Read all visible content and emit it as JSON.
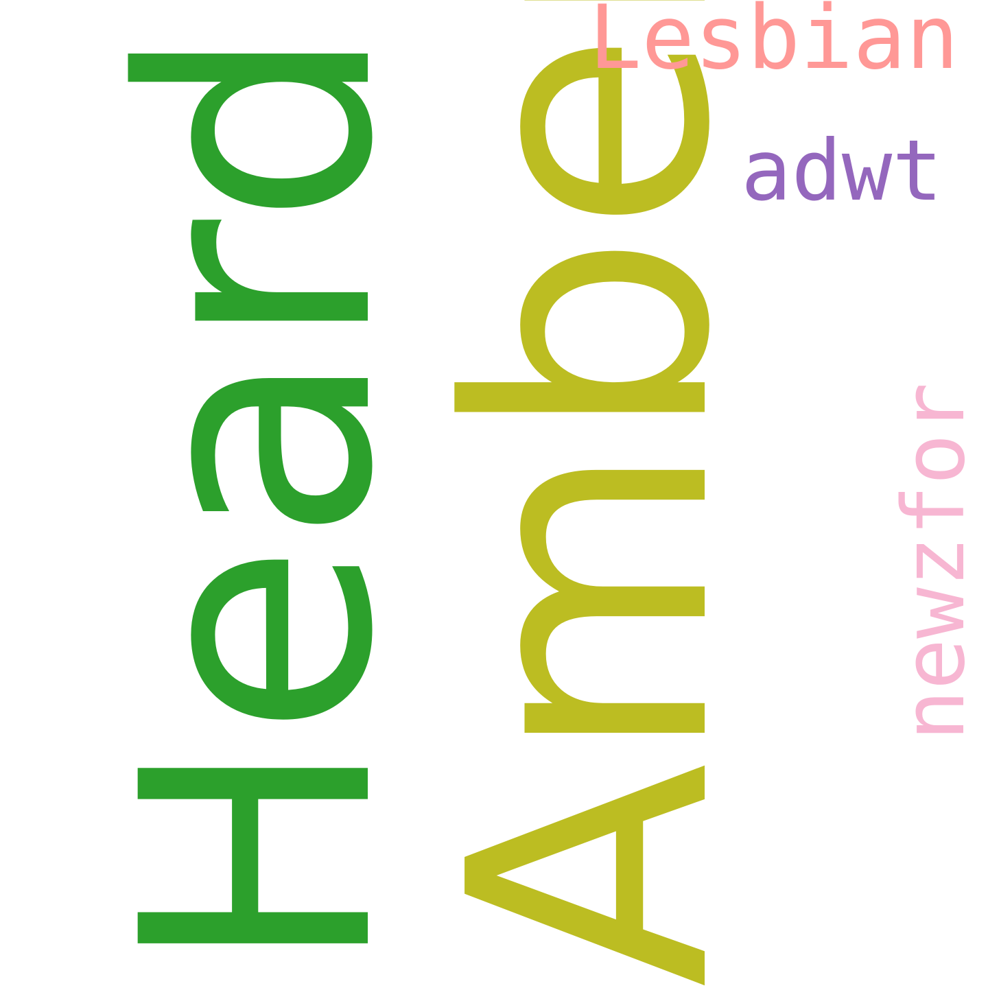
{
  "words": [
    {
      "text": "Heard",
      "color": "#2ca02c",
      "orientation": "vertical"
    },
    {
      "text": "Amber",
      "color": "#bcbd22",
      "orientation": "vertical"
    },
    {
      "text": "Lesbian",
      "color": "#ff9896",
      "orientation": "horizontal"
    },
    {
      "text": "adwt",
      "color": "#9467bd",
      "orientation": "horizontal"
    },
    {
      "text": "newzfor",
      "color": "#f7b6d2",
      "orientation": "vertical"
    }
  ]
}
